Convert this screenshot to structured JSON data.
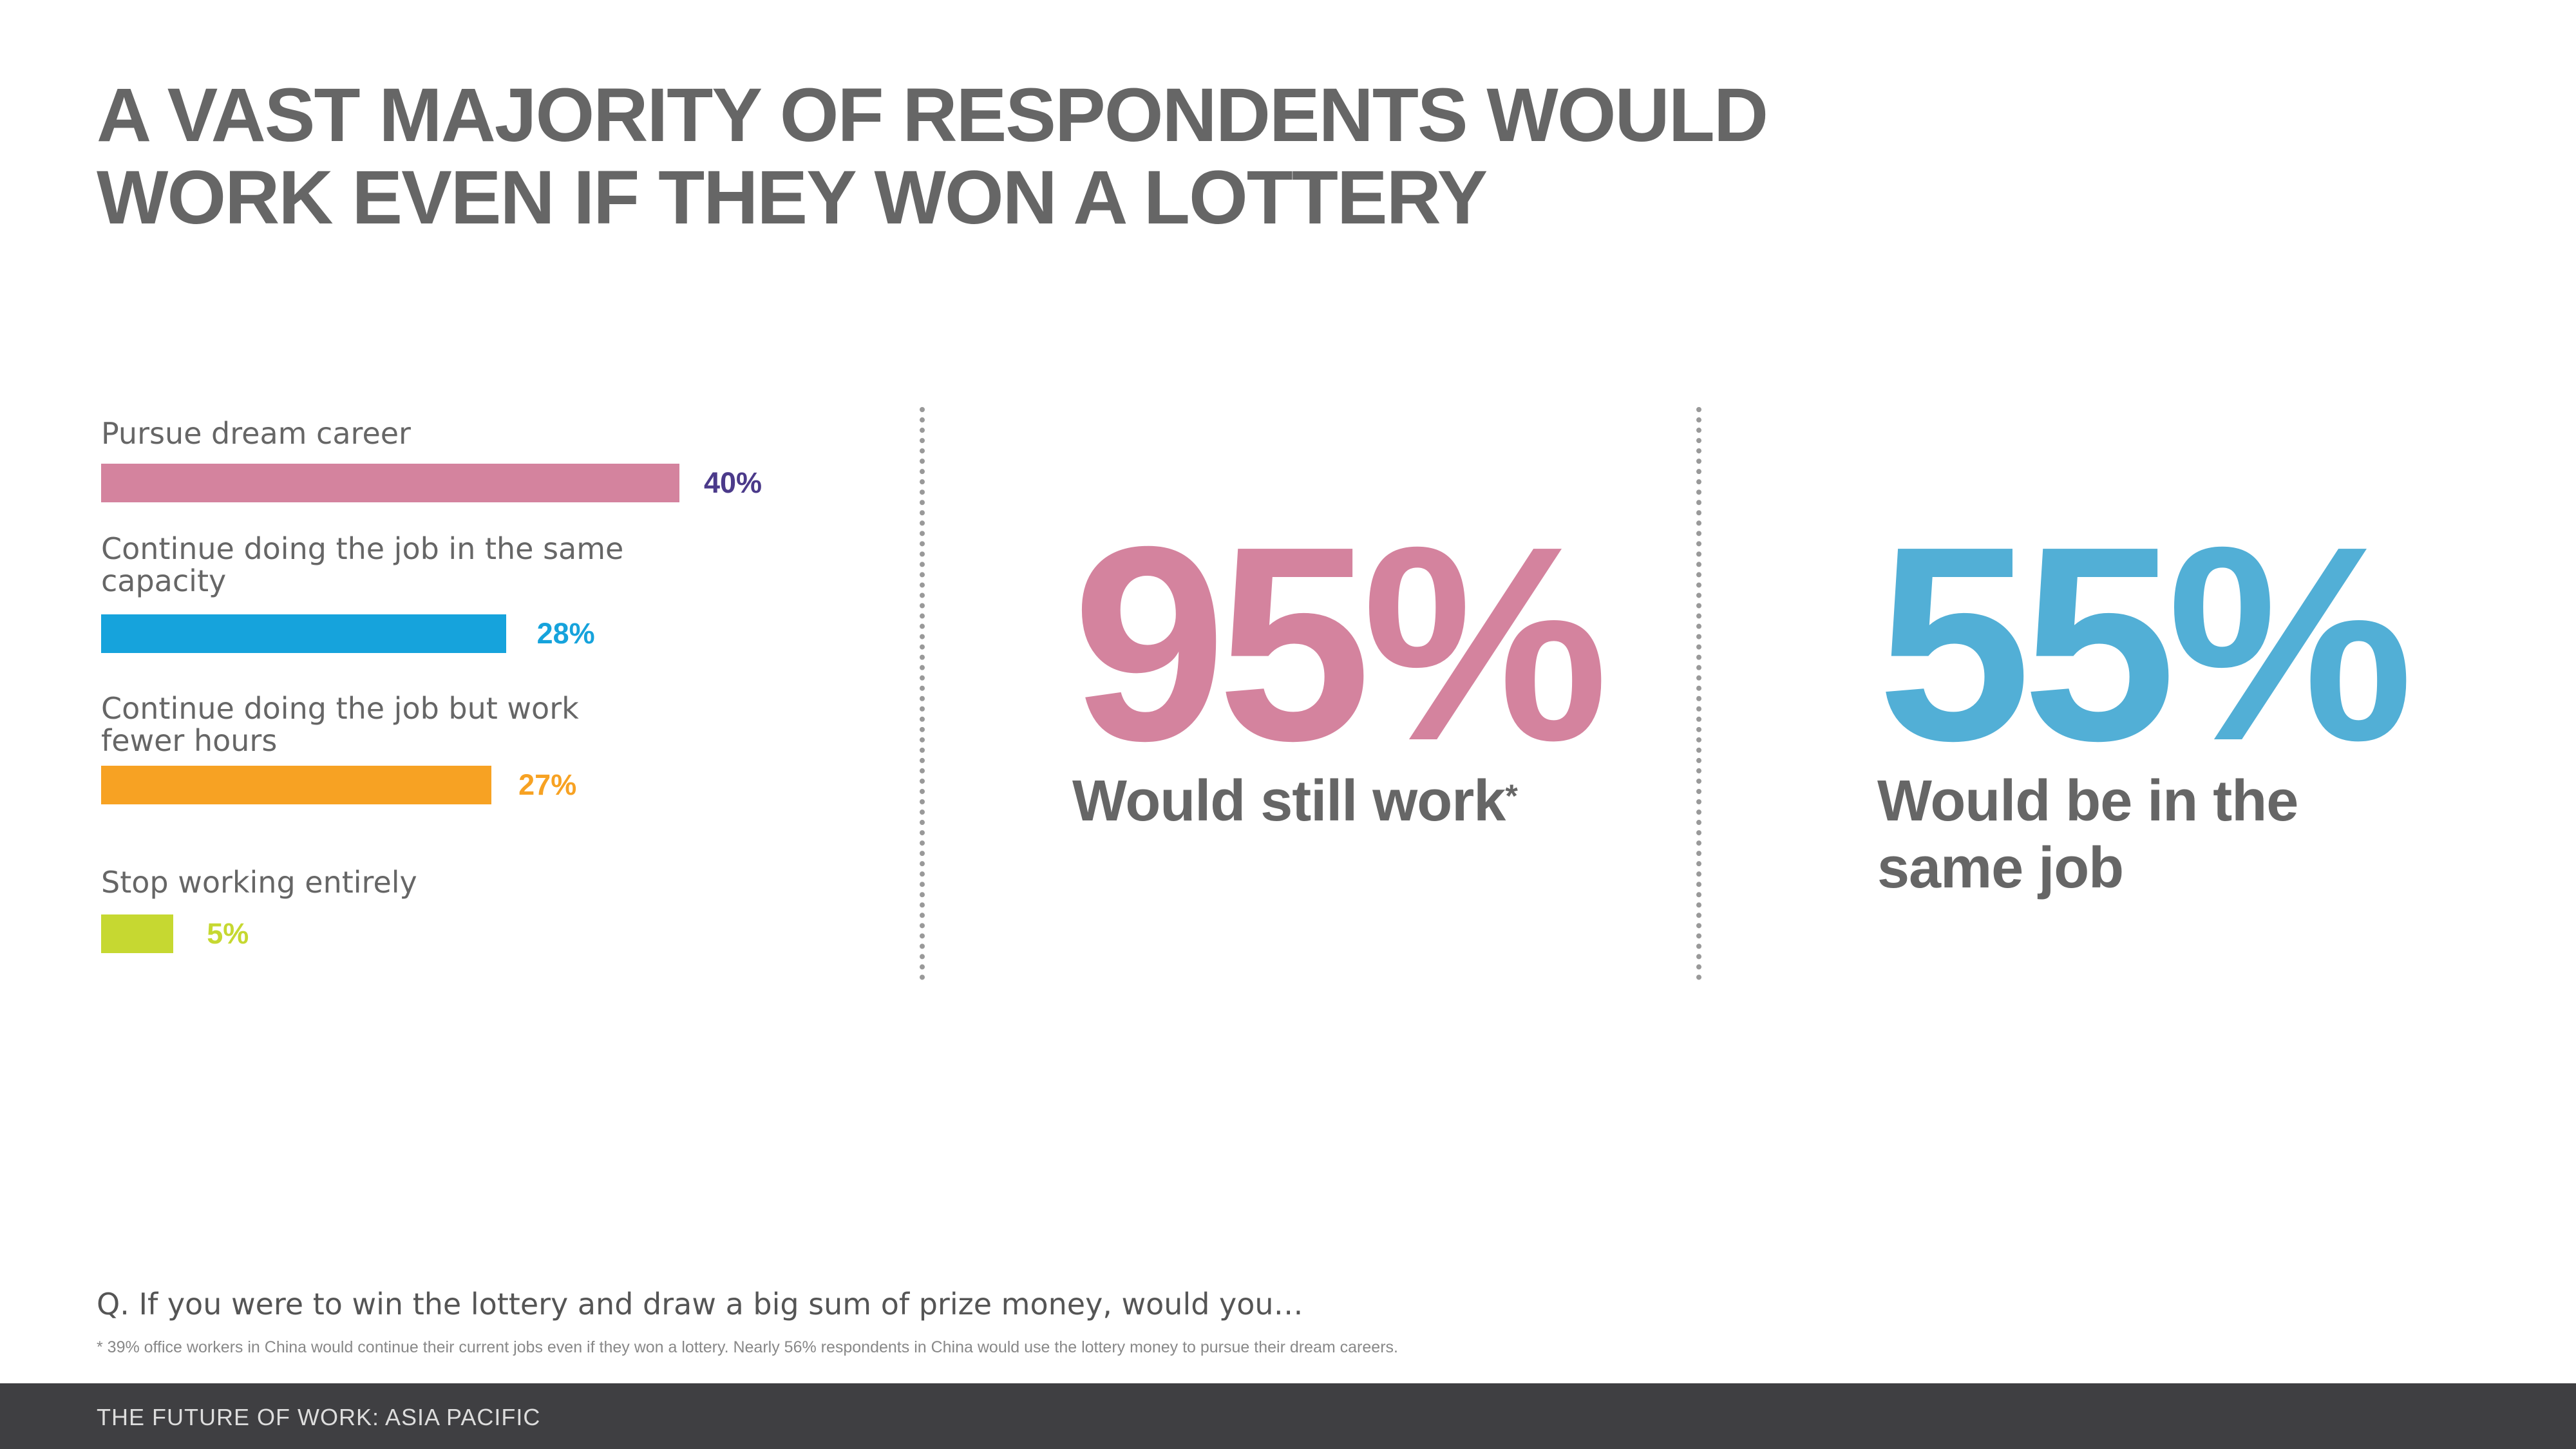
{
  "title": {
    "line1": "A VAST MAJORITY OF RESPONDENTS WOULD",
    "line2": "WORK EVEN IF THEY WON A LOTTERY"
  },
  "chart_data": {
    "type": "bar",
    "orientation": "horizontal",
    "categories": [
      "Pursue dream career",
      "Continue doing the job in the same capacity",
      "Continue doing the job but work fewer hours",
      "Stop working entirely"
    ],
    "values": [
      40,
      28,
      27,
      5
    ],
    "value_labels": [
      "40%",
      "28%",
      "27%",
      "5%"
    ],
    "bar_colors": [
      "#d4839e",
      "#16a3dc",
      "#f7a223",
      "#c6d831"
    ],
    "label_colors": [
      "#4b3a8a",
      "#16a3dc",
      "#f7a223",
      "#c6d831"
    ],
    "xlim": [
      0,
      100
    ],
    "grid": false
  },
  "stats": [
    {
      "value": "95%",
      "label": "Would still work",
      "marker": "*",
      "color": "#d4839e"
    },
    {
      "value": "55%",
      "label_line1": "Would be in the",
      "label_line2": "same job",
      "color": "#52afd6"
    }
  ],
  "question": "Q. If you were to win the lottery and draw a big sum of prize money, would you…",
  "footnote": "* 39% office workers in China would continue their current jobs even if they won a lottery. Nearly 56% respondents in China would use the lottery money to pursue their dream careers.",
  "footer": "THE FUTURE OF WORK: ASIA PACIFIC",
  "colors": {
    "title_text": "#666666",
    "divider": "#999999",
    "footer_bg": "#3f3f42"
  }
}
